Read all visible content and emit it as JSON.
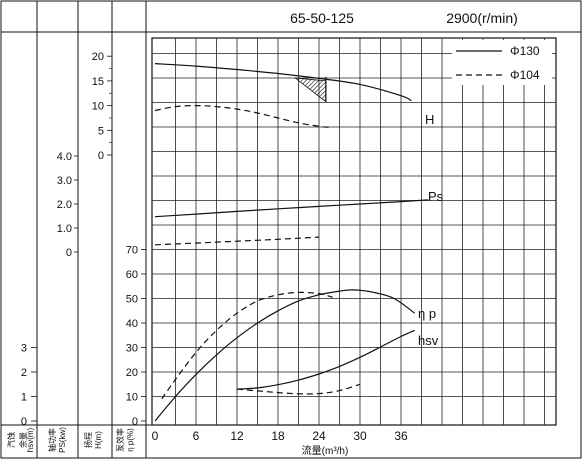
{
  "chart_data": {
    "type": "line",
    "title": "65-50-125",
    "speed": "2900(r/min)",
    "xlabel": "流量(m³/h)",
    "x_ticks": [
      "0",
      "6",
      "12",
      "18",
      "24",
      "30",
      "36"
    ],
    "xlim": [
      0,
      45
    ],
    "legend": {
      "placement": "top-right",
      "items": [
        {
          "label": "Φ130",
          "style": "solid"
        },
        {
          "label": "Φ104",
          "style": "dashed"
        }
      ]
    },
    "axes": [
      {
        "key": "hsv",
        "label_lines": [
          "汽蚀",
          "余量",
          "hsv(m)"
        ],
        "ticks": [
          "3",
          "2",
          "1",
          "0"
        ]
      },
      {
        "key": "ps",
        "label_lines": [
          "轴功率",
          "PS(kw)"
        ],
        "ticks": [
          "4.0",
          "3.0",
          "2.0",
          "1.0",
          "0"
        ]
      },
      {
        "key": "h",
        "label_lines": [
          "扬程",
          "H(m)"
        ],
        "ticks": [
          "20",
          "15",
          "10",
          "5",
          "0"
        ]
      },
      {
        "key": "eta",
        "label_lines": [
          "泵效率",
          "η p(%)"
        ],
        "ticks": [
          "70",
          "60",
          "50",
          "40",
          "30",
          "20",
          "10",
          "0"
        ]
      }
    ],
    "curve_labels": {
      "H": "H",
      "Ps": "Ps",
      "eta": "η p",
      "hsv": "hsv"
    },
    "series": [
      {
        "name": "H",
        "legend": "Φ130",
        "axis": "h",
        "style": "solid",
        "x": [
          0,
          6,
          12,
          18,
          24,
          30,
          36,
          37.5
        ],
        "y": [
          18.5,
          18.0,
          17.3,
          16.5,
          15.5,
          14.3,
          12.0,
          11.0
        ]
      },
      {
        "name": "H",
        "legend": "Φ104",
        "axis": "h",
        "style": "dashed",
        "x": [
          0,
          3,
          6,
          9,
          12,
          15,
          18,
          21,
          24,
          25.5
        ],
        "y": [
          9.0,
          9.8,
          10.0,
          9.8,
          9.3,
          8.5,
          7.5,
          6.5,
          5.8,
          5.6
        ]
      },
      {
        "name": "Ps",
        "legend": "Φ130",
        "axis": "ps",
        "style": "solid",
        "x": [
          0,
          6,
          12,
          18,
          24,
          30,
          36,
          40
        ],
        "y": [
          1.47,
          1.58,
          1.69,
          1.8,
          1.9,
          2.0,
          2.1,
          2.17
        ]
      },
      {
        "name": "Ps",
        "legend": "Φ104",
        "axis": "ps",
        "style": "dashed",
        "x": [
          0,
          6,
          12,
          18,
          24
        ],
        "y": [
          0.3,
          0.37,
          0.45,
          0.53,
          0.62
        ]
      },
      {
        "name": "η p",
        "legend": "Φ130",
        "axis": "eta",
        "style": "solid",
        "x": [
          0,
          3,
          6,
          9,
          12,
          15,
          18,
          21,
          24,
          27,
          29,
          32,
          35,
          38
        ],
        "y": [
          0,
          10,
          19,
          27,
          34,
          40,
          45,
          49,
          51.5,
          53,
          53.5,
          52.5,
          50,
          44
        ]
      },
      {
        "name": "η p",
        "legend": "Φ104",
        "axis": "eta",
        "style": "dashed",
        "x": [
          1,
          3,
          6,
          9,
          12,
          15,
          18,
          21,
          24,
          26
        ],
        "y": [
          9,
          17,
          28,
          37,
          44,
          49,
          51.5,
          52.5,
          52,
          50.5
        ]
      },
      {
        "name": "hsv",
        "legend": "Φ130",
        "axis": "eta",
        "style": "solid",
        "x": [
          12,
          15,
          18,
          21,
          24,
          27,
          30,
          33,
          36,
          38
        ],
        "y": [
          13,
          13.5,
          14.8,
          16.7,
          19.2,
          22.3,
          26,
          30.2,
          34.5,
          37
        ]
      },
      {
        "name": "hsv",
        "legend": "Φ104",
        "axis": "eta",
        "style": "dashed",
        "x": [
          12,
          15,
          18,
          21,
          24,
          27,
          30
        ],
        "y": [
          13,
          12.3,
          11.6,
          11.1,
          11.2,
          12.4,
          15
        ]
      }
    ],
    "hatch_region": {
      "x": [
        20.5,
        25
      ],
      "y_top": 15.0,
      "y_bottom": 10.8
    }
  }
}
